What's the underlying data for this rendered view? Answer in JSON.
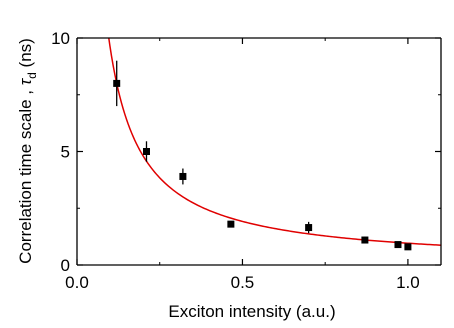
{
  "chart_data": {
    "type": "scatter",
    "title": "",
    "xlabel": "Exciton intensity (a.u.)",
    "ylabel": {
      "main": "Correlation time scale , ",
      "symbol": "τ",
      "subscript": "d",
      "unit": " (ns)"
    },
    "xlim": [
      0.0,
      1.1
    ],
    "ylim": [
      0,
      10
    ],
    "x_ticks": [
      0.0,
      0.5,
      1.0
    ],
    "x_tick_labels": [
      "0.0",
      "0.5",
      "1.0"
    ],
    "y_ticks": [
      0,
      5,
      10
    ],
    "y_tick_labels": [
      "0",
      "5",
      "10"
    ],
    "grid": false,
    "series": [
      {
        "kind": "points",
        "marker": "square",
        "color": "#000000",
        "x": [
          0.12,
          0.21,
          0.32,
          0.465,
          0.7,
          0.87,
          0.97,
          1.0
        ],
        "y": [
          8.0,
          5.0,
          3.9,
          1.8,
          1.65,
          1.1,
          0.9,
          0.8
        ],
        "yerr": [
          1.0,
          0.45,
          0.35,
          0.1,
          0.25,
          0.15,
          0.1,
          0.1
        ]
      },
      {
        "kind": "fit",
        "color": "#e00000",
        "model": "a / x",
        "a": 0.96
      }
    ]
  }
}
